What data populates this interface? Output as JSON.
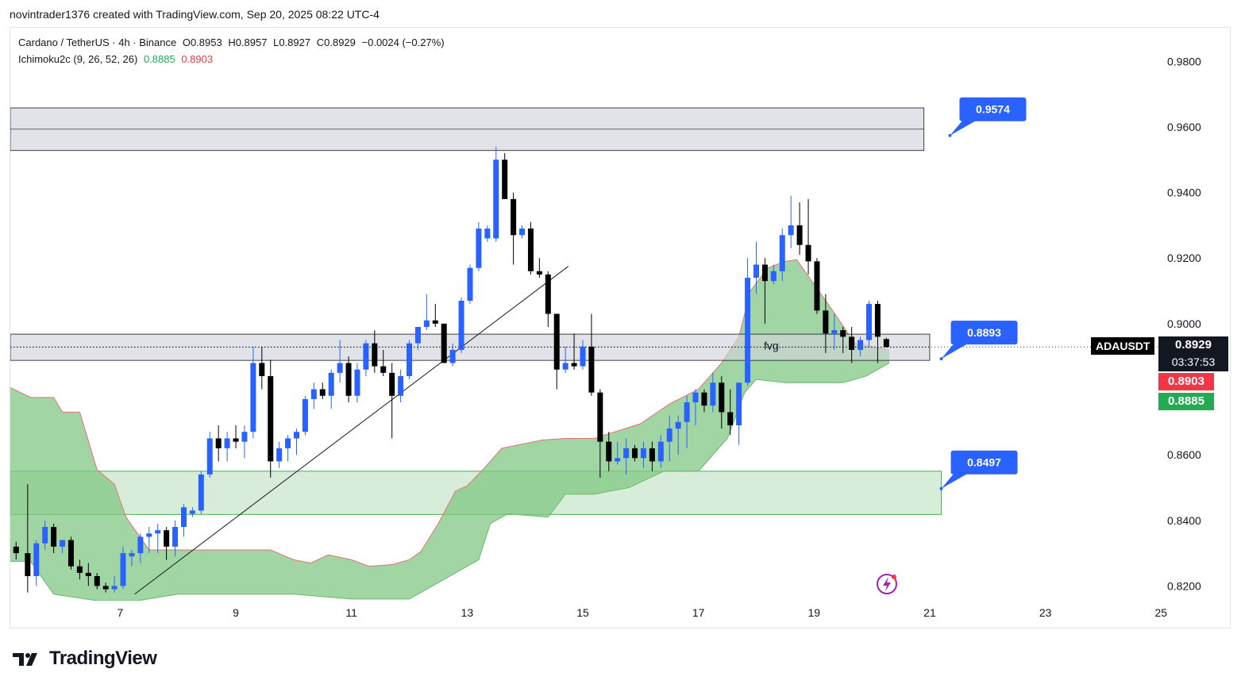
{
  "header": {
    "credit": "novintrader1376 created with TradingView.com, Sep 20, 2025 08:22 UTC-4"
  },
  "legend": {
    "symbol": "Cardano / TetherUS · 4h · Binance",
    "open": "O0.8953",
    "high": "H0.8957",
    "low": "L0.8927",
    "close": "C0.8929",
    "change": "−0.0024 (−0.27%)",
    "indicator": "Ichimoku2c (9, 26, 52, 26)",
    "indicator_val_1": "0.8885",
    "indicator_val_2": "0.8903"
  },
  "price_scale": {
    "symbol_label": "ADAUSDT",
    "last_price": "0.8929",
    "countdown": "03:37:53",
    "red_value": "0.8903",
    "green_value": "0.8885"
  },
  "branding": {
    "name": "TradingView"
  },
  "colors": {
    "up": "#2962ff",
    "down": "#000000",
    "cloud": "#81c784",
    "zone_grey": "#d1d4dc",
    "zone_green": "#c8e6c9",
    "callout": "#2962ff"
  },
  "chart_data": {
    "type": "candlestick",
    "ylim": [
      0.8155,
      0.99
    ],
    "yticks": [
      "0.9800",
      "0.9600",
      "0.9400",
      "0.9200",
      "0.9000",
      "0.8600",
      "0.8400",
      "0.8200"
    ],
    "xticks": [
      "7",
      "9",
      "11",
      "13",
      "15",
      "17",
      "19",
      "21",
      "23",
      "25"
    ],
    "xtick_days": [
      7,
      9,
      11,
      13,
      15,
      17,
      19,
      21,
      23,
      25
    ],
    "xlim_days": [
      5.1,
      24.9
    ],
    "candles": [
      [
        5.2,
        0.832,
        0.8335,
        0.828,
        0.83
      ],
      [
        5.4,
        0.83,
        0.851,
        0.818,
        0.823
      ],
      [
        5.55,
        0.823,
        0.834,
        0.82,
        0.833
      ],
      [
        5.7,
        0.833,
        0.84,
        0.831,
        0.838
      ],
      [
        5.85,
        0.838,
        0.839,
        0.83,
        0.832
      ],
      [
        6.0,
        0.832,
        0.834,
        0.83,
        0.834
      ],
      [
        6.15,
        0.834,
        0.835,
        0.825,
        0.826
      ],
      [
        6.3,
        0.826,
        0.828,
        0.822,
        0.824
      ],
      [
        6.45,
        0.824,
        0.827,
        0.82,
        0.823
      ],
      [
        6.6,
        0.823,
        0.824,
        0.819,
        0.82
      ],
      [
        6.75,
        0.82,
        0.821,
        0.818,
        0.819
      ],
      [
        6.9,
        0.819,
        0.823,
        0.818,
        0.82
      ],
      [
        7.05,
        0.82,
        0.832,
        0.819,
        0.83
      ],
      [
        7.2,
        0.829,
        0.831,
        0.826,
        0.83
      ],
      [
        7.35,
        0.83,
        0.836,
        0.827,
        0.835
      ],
      [
        7.5,
        0.835,
        0.838,
        0.83,
        0.836
      ],
      [
        7.65,
        0.836,
        0.839,
        0.83,
        0.837
      ],
      [
        7.8,
        0.837,
        0.838,
        0.828,
        0.832
      ],
      [
        7.95,
        0.832,
        0.84,
        0.829,
        0.838
      ],
      [
        8.1,
        0.838,
        0.845,
        0.835,
        0.844
      ],
      [
        8.25,
        0.842,
        0.844,
        0.841,
        0.843
      ],
      [
        8.4,
        0.843,
        0.855,
        0.842,
        0.854
      ],
      [
        8.55,
        0.854,
        0.867,
        0.853,
        0.865
      ],
      [
        8.7,
        0.865,
        0.869,
        0.858,
        0.862
      ],
      [
        8.85,
        0.862,
        0.867,
        0.858,
        0.865
      ],
      [
        9.0,
        0.865,
        0.869,
        0.862,
        0.864
      ],
      [
        9.15,
        0.864,
        0.869,
        0.859,
        0.867
      ],
      [
        9.3,
        0.867,
        0.893,
        0.865,
        0.888
      ],
      [
        9.45,
        0.888,
        0.893,
        0.88,
        0.884
      ],
      [
        9.6,
        0.884,
        0.889,
        0.853,
        0.858
      ],
      [
        9.75,
        0.858,
        0.864,
        0.856,
        0.862
      ],
      [
        9.9,
        0.862,
        0.866,
        0.858,
        0.865
      ],
      [
        10.05,
        0.865,
        0.868,
        0.86,
        0.867
      ],
      [
        10.2,
        0.867,
        0.878,
        0.866,
        0.877
      ],
      [
        10.35,
        0.877,
        0.882,
        0.874,
        0.88
      ],
      [
        10.5,
        0.88,
        0.882,
        0.877,
        0.878
      ],
      [
        10.65,
        0.878,
        0.886,
        0.874,
        0.885
      ],
      [
        10.8,
        0.885,
        0.895,
        0.882,
        0.888
      ],
      [
        10.95,
        0.888,
        0.89,
        0.876,
        0.878
      ],
      [
        11.1,
        0.878,
        0.888,
        0.876,
        0.886
      ],
      [
        11.25,
        0.886,
        0.895,
        0.884,
        0.894
      ],
      [
        11.4,
        0.894,
        0.898,
        0.885,
        0.887
      ],
      [
        11.55,
        0.887,
        0.892,
        0.884,
        0.885
      ],
      [
        11.7,
        0.885,
        0.888,
        0.865,
        0.878
      ],
      [
        11.85,
        0.878,
        0.886,
        0.876,
        0.884
      ],
      [
        12.0,
        0.884,
        0.895,
        0.883,
        0.894
      ],
      [
        12.15,
        0.894,
        0.899,
        0.892,
        0.899
      ],
      [
        12.3,
        0.899,
        0.909,
        0.898,
        0.901
      ],
      [
        12.45,
        0.901,
        0.906,
        0.899,
        0.9
      ],
      [
        12.6,
        0.9,
        0.9,
        0.888,
        0.888
      ],
      [
        12.75,
        0.888,
        0.894,
        0.887,
        0.892
      ],
      [
        12.9,
        0.892,
        0.908,
        0.891,
        0.907
      ],
      [
        13.05,
        0.907,
        0.918,
        0.906,
        0.917
      ],
      [
        13.2,
        0.917,
        0.931,
        0.916,
        0.929
      ],
      [
        13.35,
        0.926,
        0.93,
        0.925,
        0.929
      ],
      [
        13.5,
        0.926,
        0.954,
        0.925,
        0.95
      ],
      [
        13.65,
        0.95,
        0.952,
        0.938,
        0.938
      ],
      [
        13.8,
        0.938,
        0.94,
        0.918,
        0.927
      ],
      [
        13.95,
        0.927,
        0.93,
        0.926,
        0.929
      ],
      [
        14.1,
        0.929,
        0.931,
        0.915,
        0.916
      ],
      [
        14.25,
        0.916,
        0.92,
        0.914,
        0.915
      ],
      [
        14.4,
        0.915,
        0.916,
        0.899,
        0.903
      ],
      [
        14.55,
        0.903,
        0.903,
        0.88,
        0.886
      ],
      [
        14.7,
        0.886,
        0.893,
        0.885,
        0.888
      ],
      [
        14.85,
        0.888,
        0.897,
        0.886,
        0.887
      ],
      [
        15.0,
        0.887,
        0.895,
        0.886,
        0.893
      ],
      [
        15.15,
        0.893,
        0.903,
        0.878,
        0.879
      ],
      [
        15.3,
        0.879,
        0.88,
        0.853,
        0.864
      ],
      [
        15.45,
        0.864,
        0.867,
        0.855,
        0.858
      ],
      [
        15.6,
        0.858,
        0.864,
        0.857,
        0.859
      ],
      [
        15.75,
        0.859,
        0.865,
        0.854,
        0.862
      ],
      [
        15.9,
        0.862,
        0.863,
        0.858,
        0.859
      ],
      [
        16.05,
        0.859,
        0.864,
        0.856,
        0.862
      ],
      [
        16.2,
        0.862,
        0.864,
        0.855,
        0.858
      ],
      [
        16.35,
        0.858,
        0.866,
        0.856,
        0.864
      ],
      [
        16.5,
        0.864,
        0.872,
        0.858,
        0.868
      ],
      [
        16.65,
        0.868,
        0.872,
        0.86,
        0.87
      ],
      [
        16.8,
        0.87,
        0.878,
        0.862,
        0.876
      ],
      [
        16.95,
        0.876,
        0.88,
        0.869,
        0.879
      ],
      [
        17.1,
        0.879,
        0.88,
        0.873,
        0.875
      ],
      [
        17.25,
        0.875,
        0.885,
        0.873,
        0.882
      ],
      [
        17.4,
        0.882,
        0.884,
        0.868,
        0.873
      ],
      [
        17.55,
        0.873,
        0.88,
        0.866,
        0.869
      ],
      [
        17.7,
        0.869,
        0.881,
        0.863,
        0.882
      ],
      [
        17.85,
        0.882,
        0.92,
        0.881,
        0.914
      ],
      [
        18.0,
        0.914,
        0.925,
        0.909,
        0.918
      ],
      [
        18.15,
        0.918,
        0.92,
        0.9,
        0.913
      ],
      [
        18.3,
        0.913,
        0.918,
        0.912,
        0.916
      ],
      [
        18.45,
        0.916,
        0.929,
        0.913,
        0.927
      ],
      [
        18.6,
        0.927,
        0.939,
        0.923,
        0.93
      ],
      [
        18.75,
        0.93,
        0.937,
        0.921,
        0.924
      ],
      [
        18.9,
        0.924,
        0.938,
        0.915,
        0.919
      ],
      [
        19.05,
        0.919,
        0.92,
        0.903,
        0.904
      ],
      [
        19.2,
        0.904,
        0.909,
        0.891,
        0.897
      ],
      [
        19.35,
        0.897,
        0.903,
        0.892,
        0.898
      ],
      [
        19.5,
        0.898,
        0.899,
        0.891,
        0.896
      ],
      [
        19.65,
        0.896,
        0.899,
        0.888,
        0.892
      ],
      [
        19.8,
        0.892,
        0.896,
        0.89,
        0.895
      ],
      [
        19.95,
        0.895,
        0.907,
        0.893,
        0.906
      ],
      [
        20.1,
        0.906,
        0.907,
        0.888,
        0.896
      ],
      [
        20.25,
        0.8953,
        0.8957,
        0.8927,
        0.8929
      ]
    ],
    "zones": [
      {
        "kind": "grey",
        "top": 0.9658,
        "bottom": 0.9528,
        "x0": 5.1,
        "x1": 20.9,
        "mid": 0.9593
      },
      {
        "kind": "grey",
        "top": 0.8968,
        "bottom": 0.8888,
        "x0": 5.1,
        "x1": 21.0,
        "mid": 0.8928,
        "label": "fvg"
      },
      {
        "kind": "green",
        "top": 0.855,
        "bottom": 0.8418,
        "x0": 5.1,
        "x1": 21.2
      }
    ],
    "trendline": [
      [
        7.25,
        0.8175
      ],
      [
        14.75,
        0.9175
      ]
    ],
    "cloud_upper": [
      [
        5.1,
        0.8805
      ],
      [
        5.45,
        0.8775
      ],
      [
        5.85,
        0.8775
      ],
      [
        6.0,
        0.873
      ],
      [
        6.3,
        0.873
      ],
      [
        6.6,
        0.8555
      ],
      [
        6.9,
        0.851
      ],
      [
        7.1,
        0.841
      ],
      [
        7.5,
        0.831
      ],
      [
        8.5,
        0.831
      ],
      [
        9.6,
        0.831
      ],
      [
        10.0,
        0.828
      ],
      [
        10.3,
        0.827
      ],
      [
        10.6,
        0.8295
      ],
      [
        11.0,
        0.828
      ],
      [
        11.3,
        0.826
      ],
      [
        11.7,
        0.8265
      ],
      [
        12.0,
        0.828
      ],
      [
        12.2,
        0.8305
      ],
      [
        12.5,
        0.839
      ],
      [
        12.8,
        0.849
      ],
      [
        13.0,
        0.8505
      ],
      [
        13.3,
        0.856
      ],
      [
        13.6,
        0.862
      ],
      [
        14.3,
        0.8645
      ],
      [
        14.7,
        0.865
      ],
      [
        15.2,
        0.865
      ],
      [
        16.0,
        0.8695
      ],
      [
        16.5,
        0.8755
      ],
      [
        17.0,
        0.88
      ],
      [
        17.4,
        0.888
      ],
      [
        17.7,
        0.896
      ],
      [
        17.9,
        0.91
      ],
      [
        18.2,
        0.917
      ],
      [
        18.5,
        0.919
      ],
      [
        18.7,
        0.9195
      ],
      [
        19.0,
        0.912
      ],
      [
        19.4,
        0.902
      ],
      [
        19.7,
        0.894
      ],
      [
        20.0,
        0.893
      ],
      [
        20.3,
        0.892
      ]
    ],
    "cloud_lower": [
      [
        5.1,
        0.8275
      ],
      [
        5.45,
        0.8275
      ],
      [
        5.85,
        0.8175
      ],
      [
        6.6,
        0.8155
      ],
      [
        7.3,
        0.8155
      ],
      [
        8.0,
        0.8175
      ],
      [
        9.0,
        0.8175
      ],
      [
        10.0,
        0.8175
      ],
      [
        11.0,
        0.816
      ],
      [
        12.0,
        0.816
      ],
      [
        12.7,
        0.823
      ],
      [
        13.2,
        0.828
      ],
      [
        13.4,
        0.839
      ],
      [
        13.7,
        0.842
      ],
      [
        14.4,
        0.841
      ],
      [
        14.7,
        0.848
      ],
      [
        15.2,
        0.848
      ],
      [
        15.8,
        0.85
      ],
      [
        16.4,
        0.855
      ],
      [
        17.0,
        0.855
      ],
      [
        17.5,
        0.865
      ],
      [
        17.8,
        0.879
      ],
      [
        18.0,
        0.883
      ],
      [
        18.5,
        0.882
      ],
      [
        19.0,
        0.882
      ],
      [
        19.5,
        0.882
      ],
      [
        19.9,
        0.884
      ],
      [
        20.3,
        0.888
      ]
    ],
    "callouts": [
      {
        "text": "0.9574",
        "price": 0.9574,
        "day": 21.35
      },
      {
        "text": "0.8893",
        "price": 0.8893,
        "day": 21.2
      },
      {
        "text": "0.8497",
        "price": 0.8497,
        "day": 21.2
      }
    ],
    "last_price": 0.8929
  }
}
